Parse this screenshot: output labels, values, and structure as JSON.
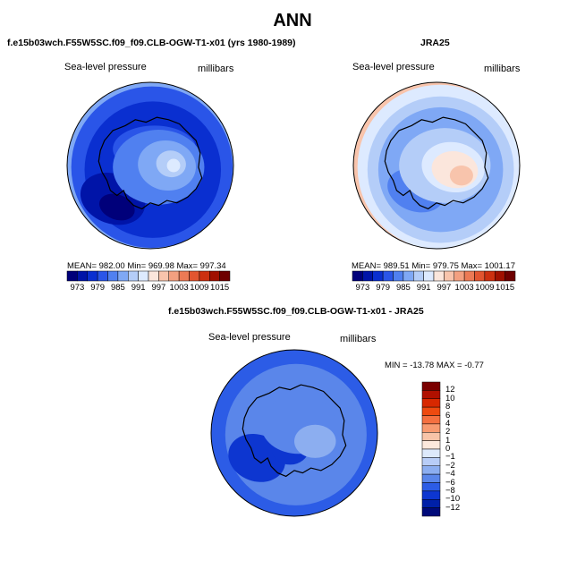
{
  "title": "ANN",
  "panels": [
    {
      "title": "f.e15b03wch.F55W5SC.f09_f09.CLB-OGW-T1-x01 (yrs 1980-1989)",
      "variable": "Sea-level pressure",
      "units": "millibars",
      "stats": "MEAN= 982.00   Min= 969.98   Max= 997.34",
      "cbar_labels": [
        "973",
        "979",
        "985",
        "991",
        "997",
        "1003",
        "1009",
        "1015"
      ]
    },
    {
      "title": "JRA25",
      "variable": "Sea-level pressure",
      "units": "millibars",
      "stats": "MEAN= 989.51   Min= 979.75   Max= 1001.17",
      "cbar_labels": [
        "973",
        "979",
        "985",
        "991",
        "997",
        "1003",
        "1009",
        "1015"
      ]
    },
    {
      "title": "f.e15b03wch.F55W5SC.f09_f09.CLB-OGW-T1-x01 - JRA25",
      "variable": "Sea-level pressure",
      "units": "millibars",
      "stats": "MIN = -13.78  MAX =  -0.77",
      "cbar_labels": [
        "12",
        "10",
        "8",
        "6",
        "4",
        "2",
        "1",
        "0",
        "−1",
        "−2",
        "−4",
        "−6",
        "−8",
        "−10",
        "−12"
      ]
    }
  ],
  "colors": {
    "abs_scale": [
      "#00007a",
      "#0014a8",
      "#0a2fd0",
      "#2a55e8",
      "#5080f0",
      "#7fa8f5",
      "#b4cdf8",
      "#ddeaff",
      "#fbe6dc",
      "#f8c4ac",
      "#f3a080",
      "#ec7a55",
      "#e25530",
      "#cc3010",
      "#a01000",
      "#6e0000"
    ],
    "diff_scale": [
      "#7a0000",
      "#b01000",
      "#d82800",
      "#ee4a10",
      "#f57040",
      "#f89a70",
      "#f8c4a8",
      "#fce8dc",
      "#dde9fb",
      "#b8cdf7",
      "#8caef0",
      "#5a86ea",
      "#2c5ce6",
      "#0d36d0",
      "#0020a8",
      "#000a7a"
    ]
  },
  "chart_data": [
    {
      "type": "heatmap",
      "title": "f.e15b03wch.F55W5SC.f09_f09.CLB-OGW-T1-x01 (yrs 1980-1989)",
      "subtitle": "Sea-level pressure",
      "units": "millibars",
      "mean": 982.0,
      "min": 969.98,
      "max": 997.34,
      "levels": [
        973,
        976,
        979,
        982,
        985,
        988,
        991,
        994,
        997,
        1000,
        1003,
        1006,
        1009,
        1012,
        1015
      ]
    },
    {
      "type": "heatmap",
      "title": "JRA25",
      "subtitle": "Sea-level pressure",
      "units": "millibars",
      "mean": 989.51,
      "min": 979.75,
      "max": 1001.17,
      "levels": [
        973,
        976,
        979,
        982,
        985,
        988,
        991,
        994,
        997,
        1000,
        1003,
        1006,
        1009,
        1012,
        1015
      ]
    },
    {
      "type": "heatmap",
      "title": "f.e15b03wch.F55W5SC.f09_f09.CLB-OGW-T1-x01 - JRA25",
      "subtitle": "Sea-level pressure",
      "units": "millibars",
      "min": -13.78,
      "max": -0.77,
      "levels": [
        12,
        10,
        8,
        6,
        4,
        2,
        1,
        0,
        -1,
        -2,
        -4,
        -6,
        -8,
        -10,
        -12
      ]
    }
  ]
}
